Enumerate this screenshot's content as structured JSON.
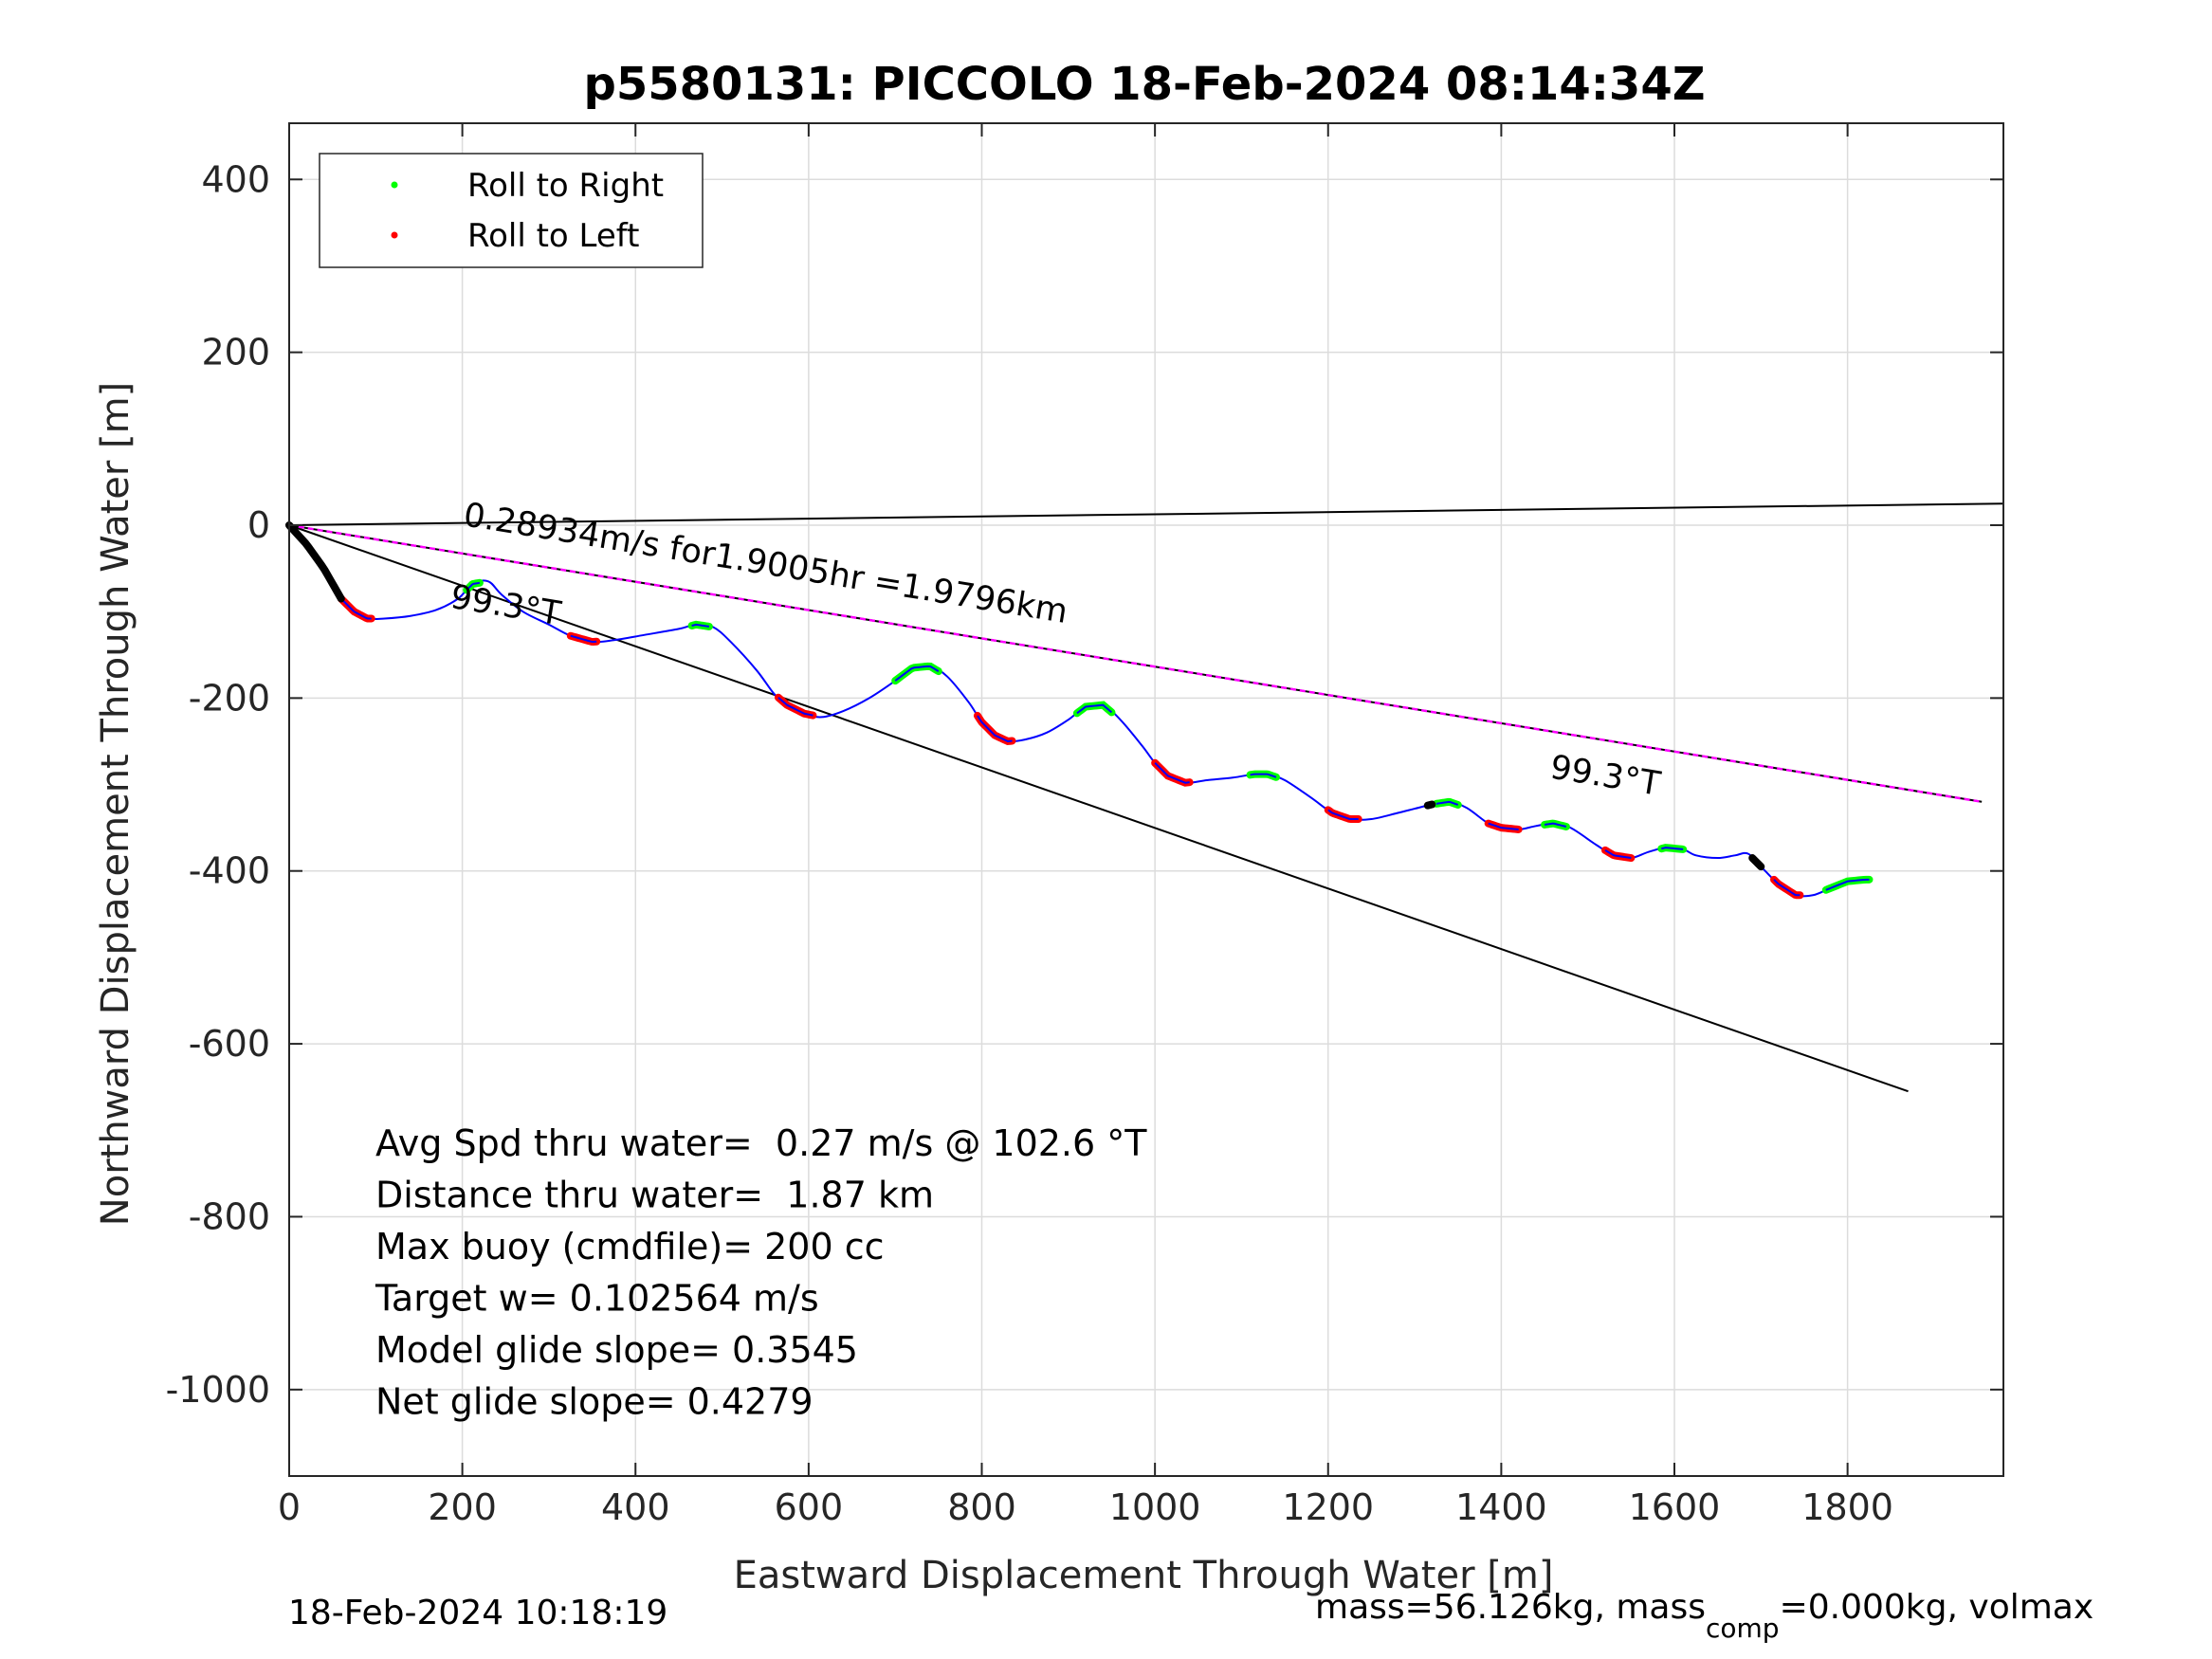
{
  "chart_data": {
    "type": "line",
    "title": "p5580131: PICCOLO 18-Feb-2024 08:14:34Z",
    "xlabel": "Eastward Displacement Through Water [m]",
    "ylabel": "Northward Displacement Through Water [m]",
    "xlim": [
      0,
      1980
    ],
    "ylim": [
      -1100,
      465
    ],
    "xticks": [
      0,
      200,
      400,
      600,
      800,
      1000,
      1200,
      1400,
      1600,
      1800
    ],
    "yticks": [
      400,
      200,
      0,
      -200,
      -400,
      -600,
      -800,
      -1000
    ],
    "xtick_labels": [
      "0",
      "200",
      "400",
      "600",
      "800",
      "1000",
      "1200",
      "1400",
      "1600",
      "1800"
    ],
    "ytick_labels": [
      "400",
      "200",
      "0",
      "-200",
      "-400",
      "-600",
      "-800",
      "-1000"
    ],
    "grid": true,
    "legend_position": "top-left",
    "legend": [
      {
        "label": "Roll to Right",
        "color": "#00ff00"
      },
      {
        "label": "Roll to Left",
        "color": "#ff0000"
      }
    ],
    "track": {
      "name": "",
      "color": "#0000ff",
      "points": [
        [
          0,
          0
        ],
        [
          20,
          -22
        ],
        [
          40,
          -50
        ],
        [
          60,
          -85
        ],
        [
          75,
          -100
        ],
        [
          90,
          -108
        ],
        [
          110,
          -108
        ],
        [
          140,
          -105
        ],
        [
          170,
          -98
        ],
        [
          195,
          -85
        ],
        [
          212,
          -68
        ],
        [
          230,
          -65
        ],
        [
          245,
          -80
        ],
        [
          270,
          -100
        ],
        [
          300,
          -115
        ],
        [
          325,
          -128
        ],
        [
          350,
          -135
        ],
        [
          375,
          -133
        ],
        [
          410,
          -127
        ],
        [
          450,
          -120
        ],
        [
          470,
          -115
        ],
        [
          490,
          -118
        ],
        [
          510,
          -135
        ],
        [
          540,
          -168
        ],
        [
          560,
          -195
        ],
        [
          575,
          -208
        ],
        [
          595,
          -218
        ],
        [
          615,
          -222
        ],
        [
          640,
          -215
        ],
        [
          670,
          -200
        ],
        [
          700,
          -180
        ],
        [
          720,
          -165
        ],
        [
          740,
          -163
        ],
        [
          760,
          -175
        ],
        [
          785,
          -205
        ],
        [
          800,
          -228
        ],
        [
          815,
          -243
        ],
        [
          830,
          -250
        ],
        [
          850,
          -248
        ],
        [
          875,
          -240
        ],
        [
          900,
          -225
        ],
        [
          920,
          -210
        ],
        [
          940,
          -208
        ],
        [
          960,
          -225
        ],
        [
          985,
          -255
        ],
        [
          1000,
          -275
        ],
        [
          1015,
          -290
        ],
        [
          1035,
          -298
        ],
        [
          1060,
          -295
        ],
        [
          1090,
          -292
        ],
        [
          1115,
          -288
        ],
        [
          1130,
          -288
        ],
        [
          1150,
          -295
        ],
        [
          1180,
          -315
        ],
        [
          1205,
          -333
        ],
        [
          1225,
          -340
        ],
        [
          1250,
          -340
        ],
        [
          1280,
          -333
        ],
        [
          1300,
          -328
        ],
        [
          1320,
          -323
        ],
        [
          1340,
          -320
        ],
        [
          1360,
          -327
        ],
        [
          1385,
          -345
        ],
        [
          1400,
          -350
        ],
        [
          1420,
          -352
        ],
        [
          1440,
          -348
        ],
        [
          1460,
          -345
        ],
        [
          1480,
          -350
        ],
        [
          1510,
          -370
        ],
        [
          1530,
          -382
        ],
        [
          1550,
          -385
        ],
        [
          1570,
          -378
        ],
        [
          1590,
          -373
        ],
        [
          1610,
          -375
        ],
        [
          1625,
          -382
        ],
        [
          1650,
          -385
        ],
        [
          1670,
          -382
        ],
        [
          1685,
          -380
        ],
        [
          1700,
          -395
        ],
        [
          1720,
          -415
        ],
        [
          1740,
          -428
        ],
        [
          1760,
          -428
        ],
        [
          1780,
          -420
        ],
        [
          1800,
          -412
        ],
        [
          1820,
          -410
        ]
      ]
    },
    "roll_right_segments": [
      [
        205,
        220
      ],
      [
        465,
        485
      ],
      [
        700,
        750
      ],
      [
        910,
        950
      ],
      [
        1110,
        1140
      ],
      [
        1325,
        1350
      ],
      [
        1450,
        1475
      ],
      [
        1585,
        1610
      ],
      [
        1775,
        1825
      ]
    ],
    "roll_left_segments": [
      [
        60,
        95
      ],
      [
        325,
        355
      ],
      [
        565,
        605
      ],
      [
        795,
        835
      ],
      [
        1000,
        1040
      ],
      [
        1200,
        1235
      ],
      [
        1385,
        1420
      ],
      [
        1520,
        1550
      ],
      [
        1715,
        1745
      ]
    ],
    "black_segments": [
      [
        0,
        60
      ],
      [
        1315,
        1320
      ],
      [
        1690,
        1700
      ]
    ],
    "heading_lines": [
      {
        "from": [
          0,
          0
        ],
        "to": [
          1980,
          25
        ],
        "color": "#000000"
      },
      {
        "from": [
          0,
          0
        ],
        "to": [
          1870,
          -655
        ],
        "color": "#000000"
      },
      {
        "from": [
          0,
          0
        ],
        "to": [
          1955,
          -320
        ],
        "color": "#000000"
      },
      {
        "from": [
          0,
          0
        ],
        "to": [
          1955,
          -320
        ],
        "color": "#ff00ff",
        "dashed": true
      }
    ],
    "annotations": [
      {
        "text": "0.28934m/s for1.9005hr =1.9796km",
        "x": 200,
        "y": 0,
        "rotate": 9.2,
        "size": 35
      },
      {
        "text": "99.3°T",
        "x": 185,
        "y": -95,
        "rotate": 9.2,
        "size": 35
      },
      {
        "text": "99.3°T",
        "x": 1455,
        "y": -292,
        "rotate": 9.2,
        "size": 35
      }
    ],
    "stats": [
      "Avg Spd thru water=  0.27 m/s @ 102.6 °T",
      "Distance thru water=  1.87 km",
      "Max buoy (cmdfile)= 200 cc",
      "Target w= 0.102564 m/s",
      "Model glide slope= 0.3545",
      "Net glide slope= 0.4279"
    ]
  },
  "footer": {
    "timestamp": "18-Feb-2024 10:18:19",
    "mass_prefix": "mass=56.126kg, mass",
    "mass_sub": "comp",
    "mass_suffix": "=0.000kg, volmax"
  }
}
